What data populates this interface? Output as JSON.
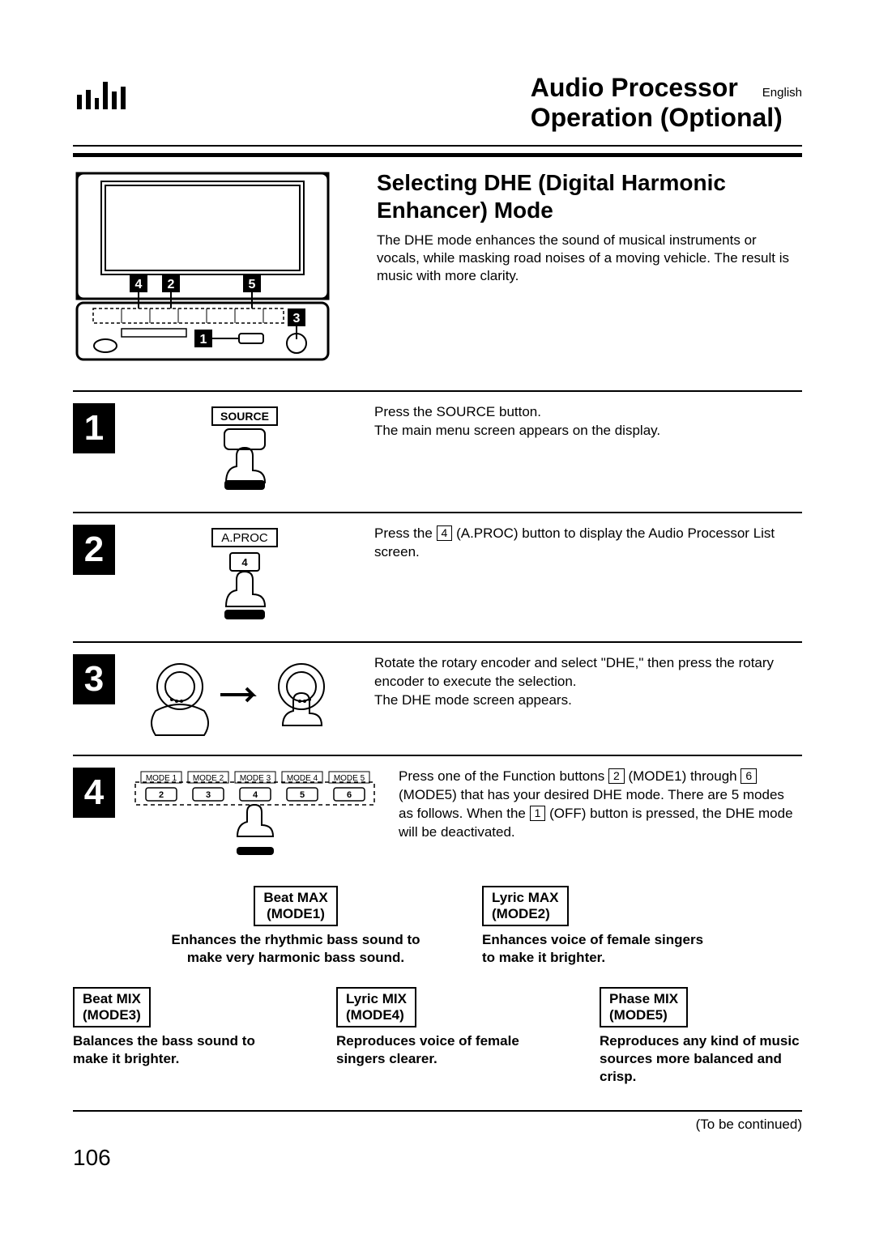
{
  "header": {
    "title1": "Audio Processor",
    "title2": "Operation (Optional)",
    "language": "English",
    "logo_bars": [
      18,
      24,
      14,
      34,
      22,
      28
    ]
  },
  "section_title": "Selecting DHE (Digital Harmonic Enhancer) Mode",
  "intro": "The DHE mode enhances the sound of musical instruments or vocals, while masking road noises of a moving vehicle. The result is music with more clarity.",
  "device_callouts": {
    "c4": "4",
    "c2": "2",
    "c5": "5",
    "c3": "3",
    "c1": "1"
  },
  "steps": {
    "s1": {
      "num": "1",
      "label": "SOURCE",
      "text": "Press the SOURCE button.\nThe main menu screen appears on the display."
    },
    "s2": {
      "num": "2",
      "label": "A.PROC",
      "keynum": "4",
      "text_a": "Press the ",
      "keyref": "4",
      "text_b": " (A.PROC) button to display the Audio Processor List screen."
    },
    "s3": {
      "num": "3",
      "text": "Rotate the rotary encoder and select \"DHE,\" then press the rotary encoder to execute the selection.\nThe DHE mode screen appears."
    },
    "s4": {
      "num": "4",
      "mode_labels": [
        "MODE 1",
        "MODE 2",
        "MODE 3",
        "MODE 4",
        "MODE 5"
      ],
      "key_labels": [
        "2",
        "3",
        "4",
        "5",
        "6"
      ],
      "t1": "Press one of the Function buttons ",
      "k1": "2",
      "t2": " (MODE1) through ",
      "k2": "6",
      "t3": " (MODE5) that has your desired DHE mode. There are 5 modes as follows. When the ",
      "k3": "1",
      "t4": " (OFF) button is pressed, the DHE mode will be deactivated."
    }
  },
  "modes": {
    "m1": {
      "title": "Beat MAX (MODE1)",
      "desc": "Enhances the rhythmic bass sound to make very harmonic bass sound."
    },
    "m2": {
      "title": "Lyric MAX (MODE2)",
      "desc": "Enhances voice of female singers to make it brighter."
    },
    "m3": {
      "title": "Beat MIX (MODE3)",
      "desc": "Balances the bass sound to make it brighter."
    },
    "m4": {
      "title": "Lyric MIX (MODE4)",
      "desc": "Reproduces voice of female singers clearer."
    },
    "m5": {
      "title": "Phase MIX (MODE5)",
      "desc": "Reproduces any kind of music sources more balanced and crisp."
    }
  },
  "continued": "(To be continued)",
  "page": "106"
}
